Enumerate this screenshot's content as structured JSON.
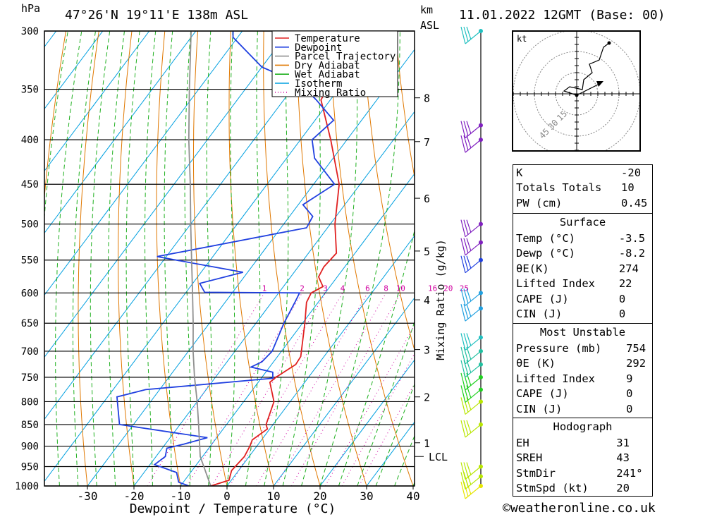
{
  "header": {
    "location": "47°26'N  19°11'E  138m  ASL",
    "date": "11.01.2022  12GMT  (Base: 00)",
    "pressure_unit": "hPa",
    "height_unit_1": "km",
    "height_unit_2": "ASL"
  },
  "chart_data": {
    "type": "line",
    "subtype": "skew-T log-P diagram",
    "xlabel": "Dewpoint / Temperature (°C)",
    "ylabel": "hPa",
    "secondary_ylabel": "Mixing Ratio (g/kg)",
    "x_ticks": [
      -30,
      -20,
      -10,
      0,
      10,
      20,
      30,
      40
    ],
    "p_ticks": [
      300,
      350,
      400,
      450,
      500,
      550,
      600,
      650,
      700,
      750,
      800,
      850,
      900,
      950,
      1000
    ],
    "km_ticks": [
      {
        "p": 358,
        "label": "8"
      },
      {
        "p": 402,
        "label": "7"
      },
      {
        "p": 467,
        "label": "6"
      },
      {
        "p": 537,
        "label": "5"
      },
      {
        "p": 611,
        "label": "4"
      },
      {
        "p": 697,
        "label": "3"
      },
      {
        "p": 790,
        "label": "2"
      },
      {
        "p": 892,
        "label": "1"
      }
    ],
    "lcl": {
      "p": 925,
      "label": "LCL"
    },
    "mixing_ratio_labels": [
      "1",
      "2",
      "3",
      "4",
      "6",
      "8",
      "10",
      "16",
      "20",
      "25"
    ],
    "legend": [
      {
        "name": "Temperature",
        "color": "#e02020",
        "style": "solid"
      },
      {
        "name": "Dewpoint",
        "color": "#2040e0",
        "style": "solid"
      },
      {
        "name": "Parcel Trajectory",
        "color": "#909090",
        "style": "solid"
      },
      {
        "name": "Dry Adiabat",
        "color": "#e07800",
        "style": "solid"
      },
      {
        "name": "Wet Adiabat",
        "color": "#20b020",
        "style": "solid"
      },
      {
        "name": "Isotherm",
        "color": "#00a0e0",
        "style": "solid"
      },
      {
        "name": "Mixing Ratio",
        "color": "#d000a0",
        "style": "dotted"
      }
    ],
    "series": [
      {
        "name": "Temperature",
        "color": "#e02020",
        "points": [
          [
            1000,
            -3.5
          ],
          [
            985,
            -0.5
          ],
          [
            960,
            -1.5
          ],
          [
            925,
            -1.0
          ],
          [
            900,
            -1.5
          ],
          [
            885,
            -2.0
          ],
          [
            860,
            -0.5
          ],
          [
            850,
            -1.5
          ],
          [
            800,
            -3.5
          ],
          [
            760,
            -7.5
          ],
          [
            750,
            -7.0
          ],
          [
            725,
            -4.8
          ],
          [
            710,
            -5.0
          ],
          [
            650,
            -9.5
          ],
          [
            615,
            -12.5
          ],
          [
            600,
            -13.0
          ],
          [
            590,
            -11.5
          ],
          [
            575,
            -14.0
          ],
          [
            560,
            -14.5
          ],
          [
            540,
            -14.0
          ],
          [
            500,
            -19.0
          ],
          [
            450,
            -24.5
          ],
          [
            400,
            -33.5
          ],
          [
            360,
            -42.0
          ],
          [
            350,
            -42.5
          ],
          [
            310,
            -48.0
          ],
          [
            300,
            -49.0
          ]
        ]
      },
      {
        "name": "Dewpoint",
        "color": "#2040e0",
        "points": [
          [
            1000,
            -8.2
          ],
          [
            990,
            -11.0
          ],
          [
            965,
            -13.0
          ],
          [
            945,
            -19.0
          ],
          [
            925,
            -18.0
          ],
          [
            905,
            -19.0
          ],
          [
            895,
            -16.0
          ],
          [
            880,
            -12.0
          ],
          [
            850,
            -33.0
          ],
          [
            790,
            -38.0
          ],
          [
            775,
            -33.0
          ],
          [
            752,
            -7.5
          ],
          [
            740,
            -8.5
          ],
          [
            730,
            -14.0
          ],
          [
            720,
            -12.5
          ],
          [
            700,
            -12.0
          ],
          [
            650,
            -14.0
          ],
          [
            615,
            -15.0
          ],
          [
            600,
            -15.5
          ],
          [
            599,
            -36.0
          ],
          [
            585,
            -38.5
          ],
          [
            568,
            -31.0
          ],
          [
            545,
            -52.0
          ],
          [
            505,
            -24.5
          ],
          [
            490,
            -25.0
          ],
          [
            475,
            -29.0
          ],
          [
            450,
            -25.5
          ],
          [
            420,
            -34.0
          ],
          [
            400,
            -37.5
          ],
          [
            380,
            -36.0
          ],
          [
            360,
            -43.0
          ],
          [
            345,
            -49.0
          ],
          [
            330,
            -60.0
          ],
          [
            305,
            -71.0
          ],
          [
            300,
            -72.0
          ]
        ]
      },
      {
        "name": "Parcel Trajectory",
        "color": "#909090",
        "points": [
          [
            1000,
            -3.5
          ],
          [
            925,
            -10.5
          ],
          [
            850,
            -16.0
          ],
          [
            800,
            -20.0
          ],
          [
            750,
            -24.5
          ],
          [
            700,
            -29.0
          ],
          [
            650,
            -33.5
          ],
          [
            600,
            -38.5
          ],
          [
            550,
            -44.0
          ],
          [
            500,
            -50.0
          ],
          [
            450,
            -56.5
          ],
          [
            400,
            -64.0
          ],
          [
            350,
            -72.0
          ],
          [
            300,
            -81.0
          ]
        ]
      }
    ],
    "wind_profile": [
      {
        "p": 1000,
        "color": "#e6e600"
      },
      {
        "p": 975,
        "color": "#b8e600"
      },
      {
        "p": 950,
        "color": "#b8e600"
      },
      {
        "p": 850,
        "color": "#b8e600"
      },
      {
        "p": 800,
        "color": "#b8e600"
      },
      {
        "p": 775,
        "color": "#20d020"
      },
      {
        "p": 750,
        "color": "#20d020"
      },
      {
        "p": 725,
        "color": "#20c0a0"
      },
      {
        "p": 700,
        "color": "#20c0a0"
      },
      {
        "p": 675,
        "color": "#20c0c0"
      },
      {
        "p": 625,
        "color": "#20a0e0"
      },
      {
        "p": 600,
        "color": "#20a0e0"
      },
      {
        "p": 550,
        "color": "#2040e0"
      },
      {
        "p": 525,
        "color": "#8020c0"
      },
      {
        "p": 500,
        "color": "#8020c0"
      },
      {
        "p": 400,
        "color": "#8020c0"
      },
      {
        "p": 385,
        "color": "#8020c0"
      },
      {
        "p": 300,
        "color": "#20c0c0"
      }
    ]
  },
  "hodograph": {
    "unit": "kt",
    "ring_labels": [
      "15",
      "30",
      "45"
    ]
  },
  "indices": [
    {
      "label": "K",
      "value": "-20"
    },
    {
      "label": "Totals Totals",
      "value": "10"
    },
    {
      "label": "PW (cm)",
      "value": "0.45"
    }
  ],
  "surface": {
    "title": "Surface",
    "rows": [
      {
        "label": "Temp (°C)",
        "value": "-3.5"
      },
      {
        "label": "Dewp (°C)",
        "value": "-8.2"
      },
      {
        "label": "θE(K)",
        "value": "274"
      },
      {
        "label": "Lifted Index",
        "value": "22"
      },
      {
        "label": "CAPE (J)",
        "value": "0"
      },
      {
        "label": "CIN (J)",
        "value": "0"
      }
    ]
  },
  "most_unstable": {
    "title": "Most Unstable",
    "rows": [
      {
        "label": "Pressure (mb)",
        "value": "754"
      },
      {
        "label": "θE (K)",
        "value": "292"
      },
      {
        "label": "Lifted Index",
        "value": "9"
      },
      {
        "label": "CAPE (J)",
        "value": "0"
      },
      {
        "label": "CIN (J)",
        "value": "0"
      }
    ]
  },
  "hodo_table": {
    "title": "Hodograph",
    "rows": [
      {
        "label": "EH",
        "value": "31"
      },
      {
        "label": "SREH",
        "value": "43"
      },
      {
        "label": "StmDir",
        "value": "241°"
      },
      {
        "label": "StmSpd (kt)",
        "value": "20"
      }
    ]
  },
  "credit": "©weatheronline.co.uk"
}
